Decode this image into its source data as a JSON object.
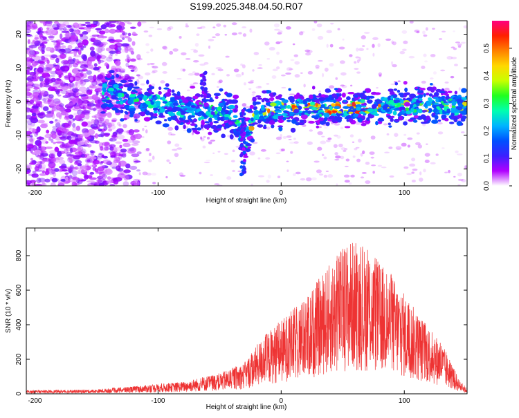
{
  "title": "S199.2025.348.04.50.R07",
  "chart_data": [
    {
      "type": "heatmap",
      "xlabel": "Height of straight line (km)",
      "ylabel": "Frequency (Hz)",
      "xlim": [
        -207,
        151
      ],
      "ylim": [
        -25,
        24
      ],
      "xticks": [
        -200,
        -100,
        0,
        100
      ],
      "yticks": [
        -20,
        -10,
        0,
        10,
        20
      ],
      "colorbar": {
        "label": "Normalized spectral amplitude",
        "range": [
          0.0,
          0.6
        ],
        "ticks": [
          "0.0",
          "0.1",
          "0.2",
          "0.3",
          "0.4",
          "0.5"
        ],
        "colors": [
          "#ffffff",
          "#b000ff",
          "#3b20ff",
          "#0050ff",
          "#00b4ff",
          "#00ffb0",
          "#20ff20",
          "#c8ff00",
          "#ffd800",
          "#ff8000",
          "#ff2000",
          "#ff0080"
        ]
      },
      "ridge": {
        "description_free": true,
        "center_hz": [
          {
            "x": -190,
            "y": -4
          },
          {
            "x": -140,
            "y": 3
          },
          {
            "x": -120,
            "y": 0
          },
          {
            "x": -95,
            "y": -1
          },
          {
            "x": -70,
            "y": -3
          },
          {
            "x": -40,
            "y": -3
          },
          {
            "x": -30,
            "y": -12
          },
          {
            "x": -20,
            "y": -3
          },
          {
            "x": 0,
            "y": -2
          },
          {
            "x": 50,
            "y": -2
          },
          {
            "x": 100,
            "y": -1
          },
          {
            "x": 150,
            "y": -1
          }
        ]
      }
    },
    {
      "type": "line",
      "xlabel": "Height of straight line (km)",
      "ylabel": "SNR (10 * v/v)",
      "xlim": [
        -207,
        151
      ],
      "ylim": [
        0,
        960
      ],
      "xticks": [
        -200,
        -100,
        0,
        100
      ],
      "yticks": [
        0,
        200,
        400,
        600,
        800
      ],
      "color": "#ee3333",
      "envelope": [
        {
          "x": -207,
          "y": 20
        },
        {
          "x": -150,
          "y": 25
        },
        {
          "x": -110,
          "y": 50
        },
        {
          "x": -80,
          "y": 70
        },
        {
          "x": -50,
          "y": 120
        },
        {
          "x": -30,
          "y": 180
        },
        {
          "x": -15,
          "y": 330
        },
        {
          "x": 0,
          "y": 430
        },
        {
          "x": 20,
          "y": 560
        },
        {
          "x": 40,
          "y": 760
        },
        {
          "x": 55,
          "y": 900
        },
        {
          "x": 70,
          "y": 840
        },
        {
          "x": 90,
          "y": 690
        },
        {
          "x": 110,
          "y": 480
        },
        {
          "x": 130,
          "y": 300
        },
        {
          "x": 145,
          "y": 80
        },
        {
          "x": 151,
          "y": 30
        }
      ]
    }
  ]
}
